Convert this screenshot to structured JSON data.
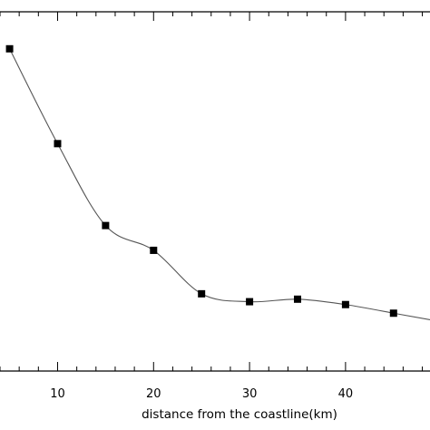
{
  "chart_data": {
    "type": "line",
    "title": "",
    "xlabel": "distance from the coastline(km)",
    "ylabel": "",
    "xlim": [
      4,
      48.8
    ],
    "ylim": [
      0,
      1
    ],
    "grid": false,
    "x_ticks": [
      10,
      20,
      30,
      40
    ],
    "x_tick_labels": [
      "10",
      "20",
      "30",
      "40"
    ],
    "series": [
      {
        "x": [
          5,
          10,
          15,
          20,
          25,
          30,
          35,
          40,
          45
        ],
        "y": [
          0.897,
          0.633,
          0.405,
          0.336,
          0.215,
          0.193,
          0.2,
          0.185,
          0.161
        ],
        "marker": "square",
        "color": "#000000",
        "line_color": "#555555"
      }
    ]
  }
}
